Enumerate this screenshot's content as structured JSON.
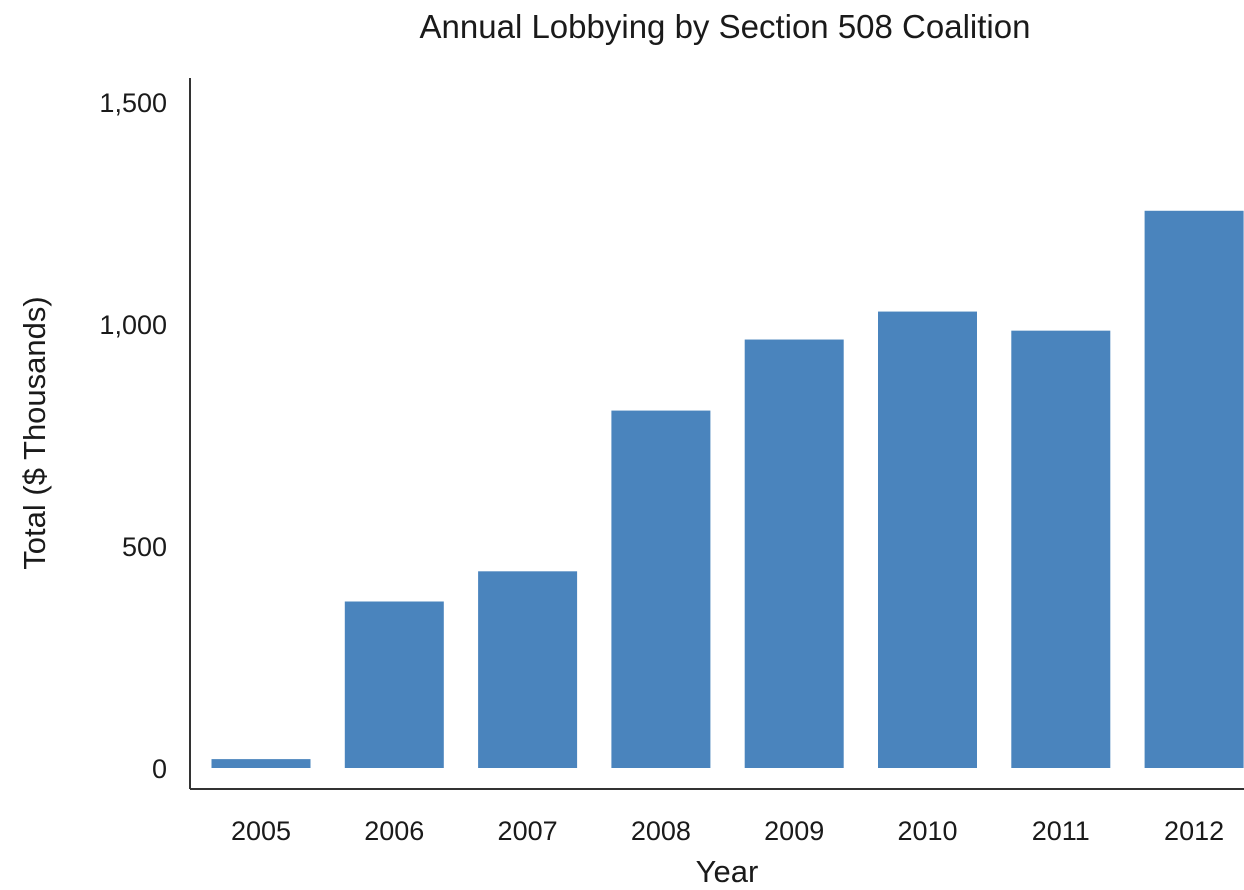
{
  "chart_data": {
    "type": "bar",
    "title": "Annual Lobbying by Section 508 Coalition",
    "xlabel": "Year",
    "ylabel": "Total ($ Thousands)",
    "categories": [
      "2005",
      "2006",
      "2007",
      "2008",
      "2009",
      "2010",
      "2011",
      "2012"
    ],
    "values": [
      20,
      375,
      443,
      805,
      965,
      1028,
      985,
      1255
    ],
    "ylim": [
      0,
      1520
    ],
    "yticks": [
      0,
      500,
      1000,
      1500
    ],
    "ytick_labels": [
      "0",
      "500",
      "1,000",
      "1,500"
    ],
    "bar_color": "#4a84bd",
    "grid": false,
    "legend": "none"
  }
}
